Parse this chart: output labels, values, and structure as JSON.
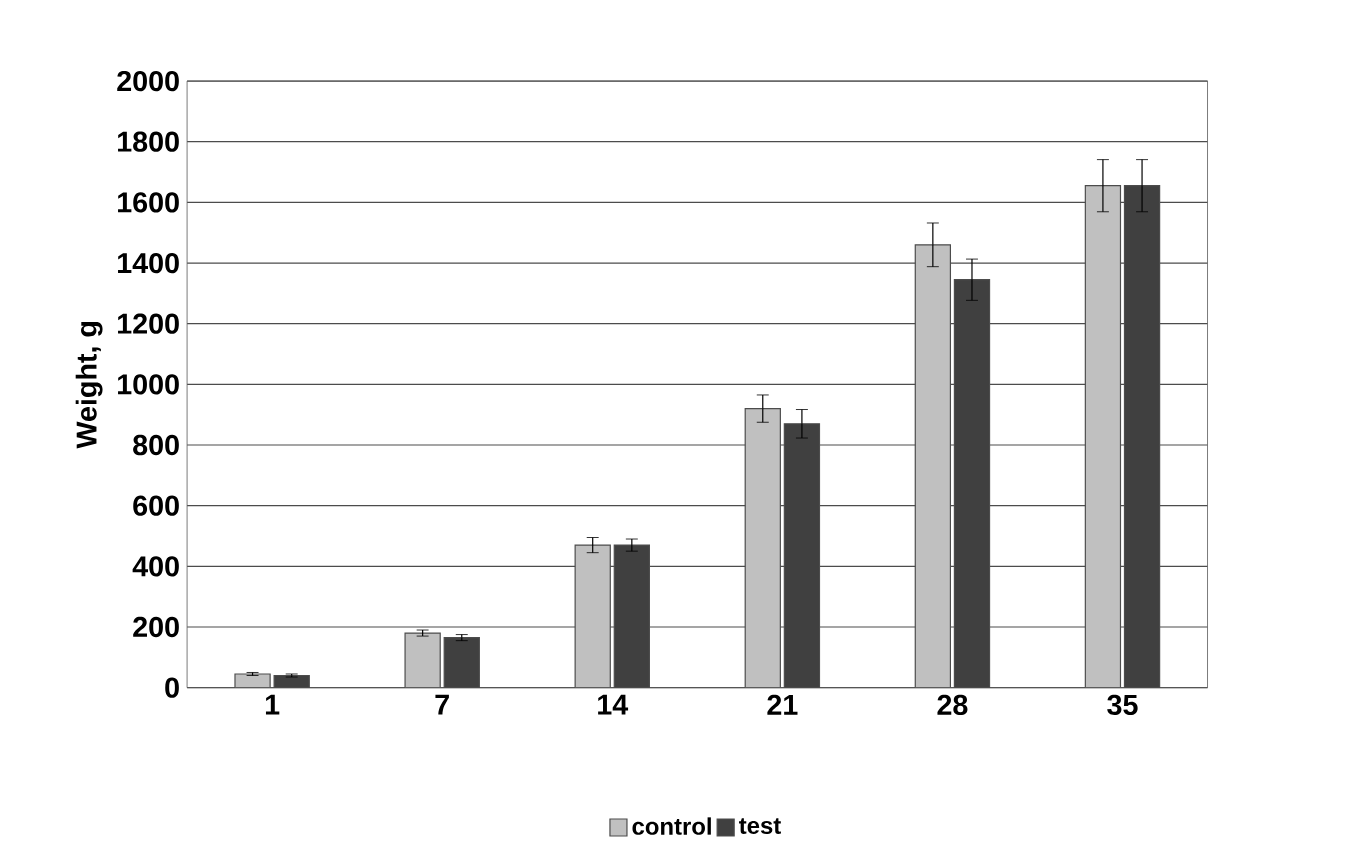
{
  "chart_data": {
    "type": "bar",
    "ylabel": "Weight, g",
    "categories": [
      "1",
      "7",
      "14",
      "21",
      "28",
      "35"
    ],
    "series": [
      {
        "name": "control",
        "color": "#c0c0c0",
        "values": [
          45,
          180,
          470,
          920,
          1460,
          1655
        ],
        "errors": [
          5,
          10,
          25,
          45,
          72,
          86
        ]
      },
      {
        "name": "test",
        "color": "#404040",
        "values": [
          40,
          165,
          470,
          870,
          1345,
          1655
        ],
        "errors": [
          5,
          10,
          20,
          47,
          68,
          86
        ]
      }
    ],
    "ylim": [
      0,
      2000
    ],
    "yticks": [
      0,
      200,
      400,
      600,
      800,
      1000,
      1200,
      1400,
      1600,
      1800,
      2000
    ],
    "grid": "y",
    "legend": "bottom"
  }
}
